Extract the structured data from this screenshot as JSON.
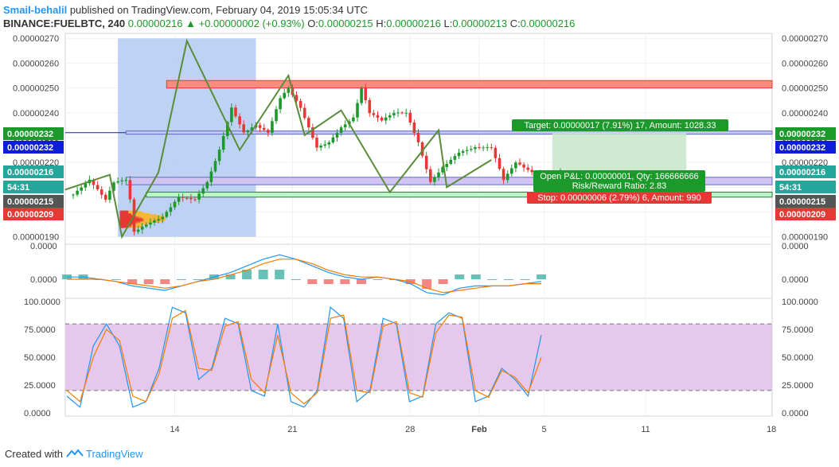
{
  "header": {
    "author": "Smail-behalil",
    "published_text": "published on TradingView.com, February 04, 2019 15:05:34 UTC",
    "symbol": "BINANCE:FUELBTC, 240",
    "last": "0.00000216",
    "change": "+0.00000002 (+0.93%)",
    "o_label": "O:",
    "o": "0.00000215",
    "h_label": "H:",
    "h": "0.00000216",
    "l_label": "L:",
    "l": "0.00000213",
    "c_label": "C:",
    "c": "0.00000216"
  },
  "footer": {
    "created_with": "Created with",
    "brand": "TradingView"
  },
  "colors": {
    "up": "#1b9a2b",
    "down": "#e53935",
    "pattern": "#5b8c3a",
    "macd": "#2196f3",
    "signal": "#f57c00",
    "stoch_band": "#e1bee7"
  },
  "chart_data": [
    {
      "type": "candlestick",
      "title": "BINANCE:FUELBTC, 240",
      "x_ticks": [
        "14",
        "21",
        "28",
        "Feb",
        "5",
        "11",
        "18"
      ],
      "y_ticks": [
        "0.00000270",
        "0.00000260",
        "0.00000250",
        "0.00000240",
        "0.00000230",
        "0.00000220",
        "0.00000210",
        "0.00000200",
        "0.00000190"
      ],
      "ylim": [
        1.87e-06,
        2.72e-06
      ],
      "price_path": [
        {
          "x": 0,
          "y": 2.07e-06
        },
        {
          "x": 4,
          "y": 2.13e-06
        },
        {
          "x": 8,
          "y": 2.05e-06
        },
        {
          "x": 10,
          "y": 2.12e-06
        },
        {
          "x": 13,
          "y": 2.13e-06
        },
        {
          "x": 14,
          "y": 2.05e-06
        },
        {
          "x": 15,
          "y": 1.92e-06
        },
        {
          "x": 18,
          "y": 1.95e-06
        },
        {
          "x": 22,
          "y": 1.98e-06
        },
        {
          "x": 26,
          "y": 2.06e-06
        },
        {
          "x": 30,
          "y": 2.05e-06
        },
        {
          "x": 33,
          "y": 2.12e-06
        },
        {
          "x": 36,
          "y": 2.25e-06
        },
        {
          "x": 39,
          "y": 2.42e-06
        },
        {
          "x": 42,
          "y": 2.32e-06
        },
        {
          "x": 45,
          "y": 2.35e-06
        },
        {
          "x": 48,
          "y": 2.32e-06
        },
        {
          "x": 51,
          "y": 2.46e-06
        },
        {
          "x": 53,
          "y": 2.5e-06
        },
        {
          "x": 56,
          "y": 2.42e-06
        },
        {
          "x": 60,
          "y": 2.26e-06
        },
        {
          "x": 63,
          "y": 2.28e-06
        },
        {
          "x": 66,
          "y": 2.34e-06
        },
        {
          "x": 69,
          "y": 2.38e-06
        },
        {
          "x": 71,
          "y": 2.5e-06
        },
        {
          "x": 73,
          "y": 2.4e-06
        },
        {
          "x": 76,
          "y": 2.37e-06
        },
        {
          "x": 79,
          "y": 2.4e-06
        },
        {
          "x": 82,
          "y": 2.4e-06
        },
        {
          "x": 85,
          "y": 2.28e-06
        },
        {
          "x": 88,
          "y": 2.12e-06
        },
        {
          "x": 91,
          "y": 2.18e-06
        },
        {
          "x": 95,
          "y": 2.24e-06
        },
        {
          "x": 99,
          "y": 2.26e-06
        },
        {
          "x": 103,
          "y": 2.26e-06
        },
        {
          "x": 106,
          "y": 2.13e-06
        },
        {
          "x": 109,
          "y": 2.2e-06
        },
        {
          "x": 113,
          "y": 2.16e-06
        },
        {
          "x": 117,
          "y": 2.14e-06
        },
        {
          "x": 120,
          "y": 2.16e-06
        }
      ],
      "pattern_points": [
        {
          "x": -2,
          "y": 2.09e-06
        },
        {
          "x": 9,
          "y": 2.15e-06
        },
        {
          "x": 12,
          "y": 1.9e-06
        },
        {
          "x": 21,
          "y": 2.16e-06
        },
        {
          "x": 28,
          "y": 2.69e-06
        },
        {
          "x": 41,
          "y": 2.25e-06
        },
        {
          "x": 53,
          "y": 2.55e-06
        },
        {
          "x": 57,
          "y": 2.31e-06
        },
        {
          "x": 66,
          "y": 2.41e-06
        },
        {
          "x": 78,
          "y": 2.08e-06
        },
        {
          "x": 90,
          "y": 2.33e-06
        },
        {
          "x": 92,
          "y": 2.1e-06
        },
        {
          "x": 103,
          "y": 2.21e-06
        }
      ],
      "price_labels": [
        {
          "value": "0.00000232",
          "color": "#1b9a2b"
        },
        {
          "value": "0.00000232",
          "color": "#0d1fd6"
        },
        {
          "value": "0.00000216",
          "color": "#26a69a"
        },
        {
          "value": "54:31",
          "color": "#26a69a"
        },
        {
          "value": "0.00000215",
          "color": "#555555"
        },
        {
          "value": "0.00000209",
          "color": "#e53935"
        }
      ],
      "position": {
        "target": "Target: 0.00000017 (7.91%) 17, Amount: 1028.33",
        "open_pl": "Open P&L: 0.00000001, Qty: 166666666",
        "risk_reward": "Risk/Reward Ratio: 2.83",
        "stop": "Stop: 0.00000006 (2.79%) 6, Amount: 990",
        "entry": 2.13e-06,
        "target_price": 2.32e-06,
        "stop_price": 2.07e-06
      }
    },
    {
      "type": "line",
      "title": "MACD",
      "y_ticks": [
        "0.0000",
        "0.0000"
      ],
      "series": [
        {
          "values": [
            0.1,
            0.1,
            0.0,
            -0.1,
            -0.3,
            -0.4,
            -0.5,
            -0.3,
            -0.1,
            0.1,
            0.3,
            0.6,
            0.9,
            1.1,
            0.9,
            0.6,
            0.3,
            0.1,
            0.0,
            0.1,
            0.0,
            -0.2,
            -0.6,
            -0.7,
            -0.4,
            -0.3,
            -0.3,
            -0.3,
            -0.2,
            -0.1
          ]
        },
        {
          "values": [
            0.0,
            0.0,
            0.0,
            -0.1,
            -0.2,
            -0.3,
            -0.4,
            -0.3,
            -0.1,
            0.0,
            0.2,
            0.4,
            0.7,
            0.9,
            0.9,
            0.7,
            0.4,
            0.2,
            0.1,
            0.1,
            0.0,
            -0.1,
            -0.4,
            -0.6,
            -0.5,
            -0.4,
            -0.3,
            -0.3,
            -0.2,
            -0.2
          ]
        }
      ]
    },
    {
      "type": "line",
      "title": "Stochastic",
      "y_ticks": [
        "100.0000",
        "75.0000",
        "50.0000",
        "25.0000",
        "0.0000"
      ],
      "ylim": [
        -3,
        103
      ],
      "bands": [
        80,
        20
      ],
      "series": [
        {
          "values": [
            15,
            5,
            60,
            80,
            60,
            5,
            10,
            40,
            95,
            90,
            30,
            40,
            85,
            80,
            20,
            15,
            80,
            10,
            5,
            20,
            95,
            85,
            10,
            20,
            85,
            80,
            10,
            15,
            80,
            90,
            85,
            10,
            15,
            40,
            30,
            15,
            70
          ]
        },
        {
          "values": [
            20,
            10,
            50,
            75,
            65,
            15,
            10,
            35,
            85,
            92,
            40,
            38,
            78,
            82,
            30,
            18,
            70,
            18,
            8,
            18,
            85,
            88,
            20,
            18,
            78,
            82,
            18,
            14,
            72,
            88,
            86,
            20,
            14,
            38,
            32,
            18,
            50
          ]
        }
      ]
    }
  ]
}
